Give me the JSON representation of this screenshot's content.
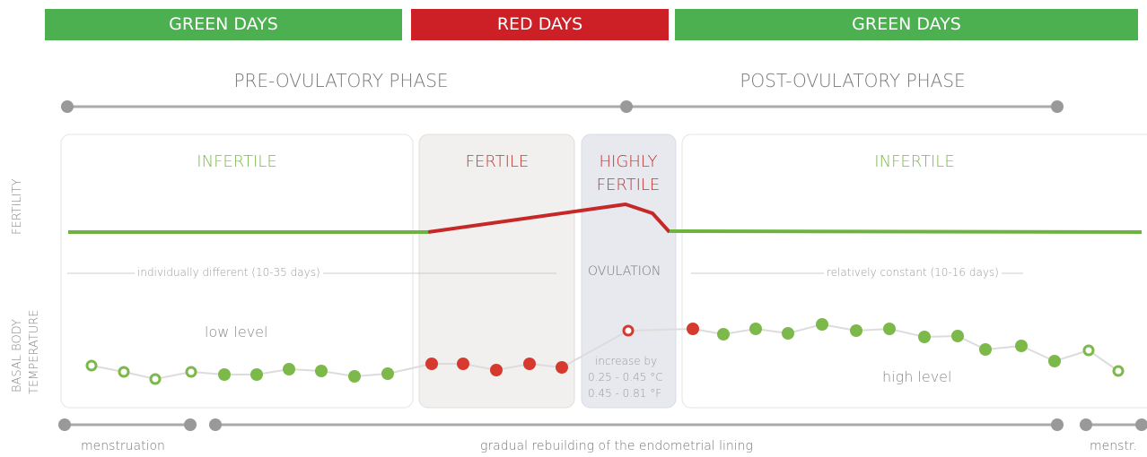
{
  "banners": [
    "GREEN DAYS",
    "RED DAYS",
    "GREEN DAYS"
  ],
  "phases": [
    "PRE-OVULATORY PHASE",
    "POST-OVULATORY PHASE"
  ],
  "axis_labels": [
    "FERTILITY",
    "BASAL BODY",
    "TEMPERATURE"
  ],
  "zones": [
    "INFERTILE",
    "FERTILE",
    "HIGHLY FERTILE",
    "INFERTILE"
  ],
  "annotations": {
    "individually_different": "individually different (10-35 days)",
    "ovulation": "OVULATION",
    "relatively_constant": "relatively constant (10-16 days)",
    "low_level": "low level",
    "high_level": "high level",
    "increase_by": "increase by",
    "celsius": "0.25 - 0.45 °C",
    "fahrenheit": "0.45 - 0.81 °F"
  },
  "cycle_labels": [
    "menstruation",
    "gradual rebuilding of the endometrial lining",
    "menstr."
  ]
}
